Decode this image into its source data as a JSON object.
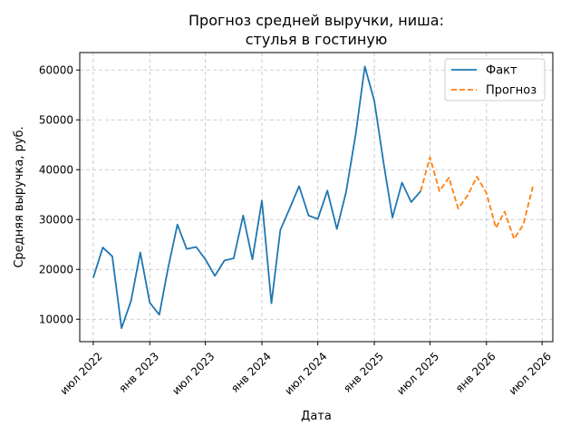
{
  "chart_data": {
    "type": "line",
    "title": "Прогноз средней выручки, ниша:\nстулья в гостиную",
    "xlabel": "Дата",
    "ylabel": "Средняя выручка, руб.",
    "x_type": "date",
    "xlim": [
      "2022-05-18",
      "2026-08-05"
    ],
    "ylim": [
      5500,
      63500
    ],
    "grid": true,
    "legend_position": "top-right",
    "x_ticks": [
      {
        "date": "2022-07-01",
        "label": "июл 2022"
      },
      {
        "date": "2023-01-01",
        "label": "янв 2023"
      },
      {
        "date": "2023-07-01",
        "label": "июл 2023"
      },
      {
        "date": "2024-01-01",
        "label": "янв 2024"
      },
      {
        "date": "2024-07-01",
        "label": "июл 2024"
      },
      {
        "date": "2025-01-01",
        "label": "янв 2025"
      },
      {
        "date": "2025-07-01",
        "label": "июл 2025"
      },
      {
        "date": "2026-01-01",
        "label": "янв 2026"
      },
      {
        "date": "2026-07-01",
        "label": "июл 2026"
      }
    ],
    "y_ticks": [
      10000,
      20000,
      30000,
      40000,
      50000,
      60000
    ],
    "series": [
      {
        "name": "Факт",
        "color": "#1f77b4",
        "style": "solid",
        "points": [
          {
            "x": "2022-07-01",
            "y": 18300
          },
          {
            "x": "2022-08-01",
            "y": 24400
          },
          {
            "x": "2022-09-01",
            "y": 22600
          },
          {
            "x": "2022-10-01",
            "y": 8200
          },
          {
            "x": "2022-11-01",
            "y": 13700
          },
          {
            "x": "2022-12-01",
            "y": 23400
          },
          {
            "x": "2023-01-01",
            "y": 13300
          },
          {
            "x": "2023-02-01",
            "y": 10900
          },
          {
            "x": "2023-03-01",
            "y": 20100
          },
          {
            "x": "2023-04-01",
            "y": 29000
          },
          {
            "x": "2023-05-01",
            "y": 24100
          },
          {
            "x": "2023-06-01",
            "y": 24500
          },
          {
            "x": "2023-07-01",
            "y": 22000
          },
          {
            "x": "2023-08-01",
            "y": 18700
          },
          {
            "x": "2023-09-01",
            "y": 21800
          },
          {
            "x": "2023-10-01",
            "y": 22200
          },
          {
            "x": "2023-11-01",
            "y": 30800
          },
          {
            "x": "2023-12-01",
            "y": 22000
          },
          {
            "x": "2024-01-01",
            "y": 33800
          },
          {
            "x": "2024-02-01",
            "y": 13200
          },
          {
            "x": "2024-03-01",
            "y": 27900
          },
          {
            "x": "2024-04-01",
            "y": 32300
          },
          {
            "x": "2024-05-01",
            "y": 36700
          },
          {
            "x": "2024-06-01",
            "y": 30800
          },
          {
            "x": "2024-07-01",
            "y": 30100
          },
          {
            "x": "2024-08-01",
            "y": 35800
          },
          {
            "x": "2024-09-01",
            "y": 28100
          },
          {
            "x": "2024-10-01",
            "y": 35500
          },
          {
            "x": "2024-11-01",
            "y": 47000
          },
          {
            "x": "2024-12-01",
            "y": 60700
          },
          {
            "x": "2025-01-01",
            "y": 53800
          },
          {
            "x": "2025-02-01",
            "y": 41000
          },
          {
            "x": "2025-03-01",
            "y": 30400
          },
          {
            "x": "2025-04-01",
            "y": 37400
          },
          {
            "x": "2025-05-01",
            "y": 33500
          },
          {
            "x": "2025-06-01",
            "y": 35700
          }
        ]
      },
      {
        "name": "Прогноз",
        "color": "#ff7f0e",
        "style": "dashed",
        "points": [
          {
            "x": "2025-06-01",
            "y": 35700
          },
          {
            "x": "2025-07-01",
            "y": 42500
          },
          {
            "x": "2025-08-01",
            "y": 35700
          },
          {
            "x": "2025-09-01",
            "y": 38400
          },
          {
            "x": "2025-10-01",
            "y": 32200
          },
          {
            "x": "2025-11-01",
            "y": 34900
          },
          {
            "x": "2025-12-01",
            "y": 38600
          },
          {
            "x": "2026-01-01",
            "y": 35300
          },
          {
            "x": "2026-02-01",
            "y": 28300
          },
          {
            "x": "2026-03-01",
            "y": 31600
          },
          {
            "x": "2026-04-01",
            "y": 26100
          },
          {
            "x": "2026-05-01",
            "y": 29000
          },
          {
            "x": "2026-06-01",
            "y": 36600
          }
        ]
      }
    ]
  }
}
